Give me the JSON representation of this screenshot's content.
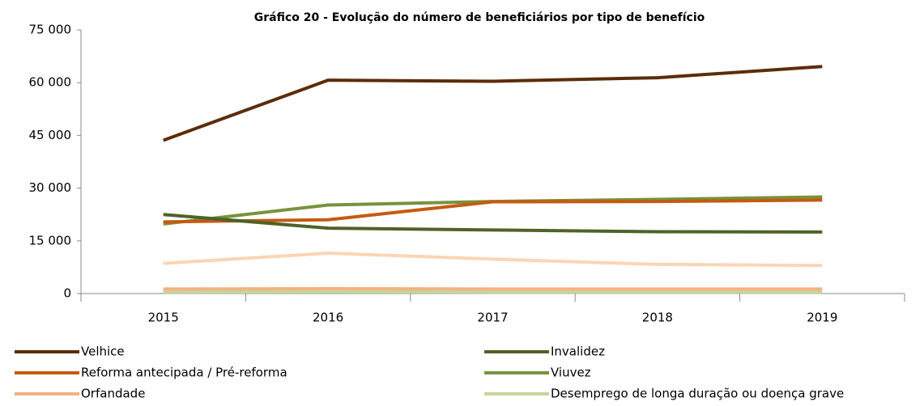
{
  "chart_data": {
    "type": "line",
    "title": "Gráfico 20 - Evolução do número de beneficiários por tipo de benefício",
    "categories": [
      "2015",
      "2016",
      "2017",
      "2018",
      "2019"
    ],
    "series": [
      {
        "name": "Velhice",
        "color": "#5c2c0a",
        "values": [
          43600,
          60700,
          60400,
          61400,
          64600
        ]
      },
      {
        "name": "Invalidez",
        "color": "#4f6228",
        "values": [
          22500,
          18600,
          18100,
          17600,
          17500
        ]
      },
      {
        "name": "Reforma antecipada / Pré-reforma",
        "color": "#c55a11",
        "values": [
          20400,
          21000,
          26100,
          26200,
          26600
        ]
      },
      {
        "name": "Viuvez",
        "color": "#77933c",
        "values": [
          19800,
          25200,
          26200,
          26800,
          27500
        ]
      },
      {
        "name": "Orfandade",
        "color": "#f4b183",
        "values": [
          1300,
          1400,
          1300,
          1300,
          1300
        ]
      },
      {
        "name": "Desemprego de longa duração ou doença grave",
        "color": "#c3d69b",
        "values": [
          400,
          500,
          400,
          400,
          400
        ]
      },
      {
        "color": "#fbd5b5",
        "values": [
          8600,
          11500,
          9800,
          8300,
          8000
        ]
      }
    ],
    "ylim": [
      0,
      75000
    ],
    "yticks": [
      0,
      {
        "value": 15000,
        "label": "15 000"
      },
      {
        "value": 30000,
        "label": "30 000"
      },
      {
        "value": 45000,
        "label": "45 000"
      },
      {
        "value": 60000,
        "label": "60 000"
      },
      {
        "value": 75000,
        "label": "75 000"
      }
    ],
    "grid": false,
    "legend": "bottom"
  }
}
